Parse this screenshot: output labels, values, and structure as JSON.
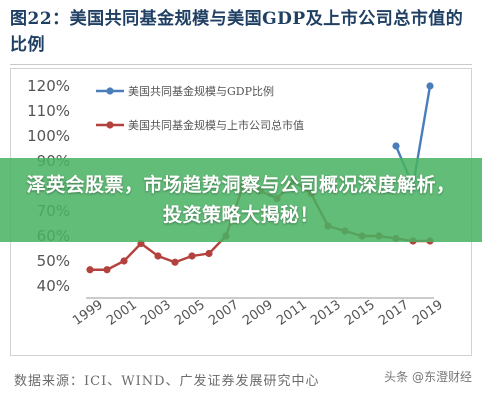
{
  "title": "图22：美国共同基金规模与美国GDP及上市公司总市值的比例",
  "source": "数据来源：ICI、WIND、广发证券发展研究中心",
  "watermark": "头条 @东澄财经",
  "banner": "泽英会股票，市场趋势洞察与公司概况深度解析，投资策略大揭秘！",
  "colors": {
    "series1": "#4a7ebb",
    "series2": "#b3413d",
    "banner": "#48b262",
    "title": "#1f3f63"
  },
  "chart_data": {
    "type": "line",
    "x": [
      1999,
      2000,
      2001,
      2002,
      2003,
      2004,
      2005,
      2006,
      2007,
      2008,
      2009,
      2010,
      2011,
      2012,
      2013,
      2014,
      2015,
      2016,
      2017,
      2018,
      2019
    ],
    "x_ticks": [
      1999,
      2001,
      2003,
      2005,
      2007,
      2009,
      2011,
      2013,
      2015,
      2017,
      2019
    ],
    "ylim": [
      40,
      120
    ],
    "y_ticks": [
      40,
      50,
      60,
      70,
      80,
      90,
      100,
      110,
      120
    ],
    "y_tick_labels": [
      "40%",
      "50%",
      "60%",
      "70%",
      "80%",
      "90%",
      "100%",
      "110%",
      "120%"
    ],
    "grid": false,
    "legend_position": "top-left",
    "series": [
      {
        "name": "美国共同基金规模与GDP比例",
        "values": [
          null,
          null,
          null,
          null,
          null,
          null,
          null,
          null,
          null,
          null,
          null,
          null,
          null,
          null,
          null,
          null,
          null,
          null,
          96,
          80,
          120
        ]
      },
      {
        "name": "美国共同基金规模与上市公司总市值",
        "values": [
          46.5,
          46.5,
          50,
          57,
          52,
          49.5,
          52,
          53,
          60,
          80,
          78,
          75,
          82,
          77,
          64,
          62,
          60,
          60,
          59,
          58,
          58
        ]
      }
    ]
  }
}
